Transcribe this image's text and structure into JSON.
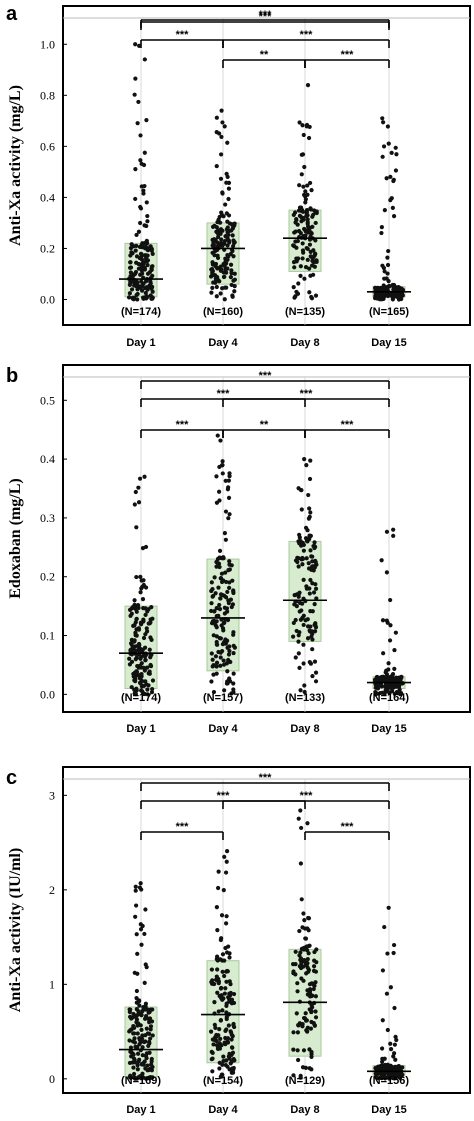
{
  "chart_data": [
    {
      "type": "scatter",
      "panel_label": "a",
      "ylabel": "Anti-Xa activity (mg/L)",
      "ylim": [
        -0.1,
        1.15
      ],
      "yticks": [
        0.0,
        0.2,
        0.4,
        0.6,
        0.8,
        1.0
      ],
      "ytick_labels": [
        "0.0",
        "0.2",
        "0.4",
        "0.6",
        "0.8",
        "1.0"
      ],
      "categories": [
        "Day 1",
        "Day 4",
        "Day 8",
        "Day 15"
      ],
      "n_labels": [
        "(N=174)",
        "(N=160)",
        "(N=135)",
        "(N=165)"
      ],
      "box_low": [
        0.01,
        0.06,
        0.11,
        0.01
      ],
      "box_high": [
        0.22,
        0.3,
        0.35,
        0.05
      ],
      "median": [
        0.08,
        0.2,
        0.24,
        0.03
      ],
      "max_value": [
        1.0,
        0.74,
        0.84,
        0.71
      ],
      "comparisons": [
        {
          "from": 0,
          "to": 3,
          "label": "***"
        },
        {
          "from": 0,
          "to": 3,
          "label": "***"
        },
        {
          "from": 0,
          "to": 1,
          "label": "***"
        },
        {
          "from": 1,
          "to": 3,
          "label": "***"
        },
        {
          "from": 1,
          "to": 2,
          "label": "**"
        },
        {
          "from": 2,
          "to": 3,
          "label": "***"
        }
      ],
      "grid": false
    },
    {
      "type": "scatter",
      "panel_label": "b",
      "ylabel": "Edoxaban  (mg/L)",
      "ylim": [
        -0.03,
        0.56
      ],
      "yticks": [
        0.0,
        0.1,
        0.2,
        0.3,
        0.4,
        0.5
      ],
      "ytick_labels": [
        "0.0",
        "0.1",
        "0.2",
        "0.3",
        "0.4",
        "0.5"
      ],
      "categories": [
        "Day 1",
        "Day 4",
        "Day 8",
        "Day 15"
      ],
      "n_labels": [
        "(N=174)",
        "(N=157)",
        "(N=133)",
        "(N=164)"
      ],
      "box_low": [
        0.01,
        0.04,
        0.09,
        0.01
      ],
      "box_high": [
        0.15,
        0.23,
        0.26,
        0.03
      ],
      "median": [
        0.07,
        0.13,
        0.16,
        0.02
      ],
      "max_value": [
        0.37,
        0.44,
        0.4,
        0.28
      ],
      "comparisons": [
        {
          "from": 0,
          "to": 3,
          "label": "***"
        },
        {
          "from": 0,
          "to": 2,
          "label": "***"
        },
        {
          "from": 1,
          "to": 3,
          "label": "***"
        },
        {
          "from": 0,
          "to": 1,
          "label": "***"
        },
        {
          "from": 1,
          "to": 2,
          "label": "**"
        },
        {
          "from": 2,
          "to": 3,
          "label": "***"
        }
      ],
      "grid": false
    },
    {
      "type": "scatter",
      "panel_label": "c",
      "ylabel": "Anti-Xa activity (IU/ml)",
      "ylim": [
        -0.15,
        3.3
      ],
      "yticks": [
        0,
        1,
        2,
        3
      ],
      "ytick_labels": [
        "0",
        "1",
        "2",
        "3"
      ],
      "categories": [
        "Day 1",
        "Day 4",
        "Day 8",
        "Day 15"
      ],
      "n_labels": [
        "(N=169)",
        "(N=154)",
        "(N=129)",
        "(N=156)"
      ],
      "box_low": [
        0.02,
        0.17,
        0.24,
        0.03
      ],
      "box_high": [
        0.76,
        1.25,
        1.37,
        0.14
      ],
      "median": [
        0.31,
        0.68,
        0.81,
        0.08
      ],
      "max_value": [
        2.07,
        2.41,
        2.84,
        1.81
      ],
      "comparisons": [
        {
          "from": 0,
          "to": 3,
          "label": "***"
        },
        {
          "from": 0,
          "to": 2,
          "label": "***"
        },
        {
          "from": 1,
          "to": 3,
          "label": "***"
        },
        {
          "from": 0,
          "to": 1,
          "label": "***"
        },
        {
          "from": 2,
          "to": 3,
          "label": "***"
        }
      ],
      "grid": false
    }
  ]
}
